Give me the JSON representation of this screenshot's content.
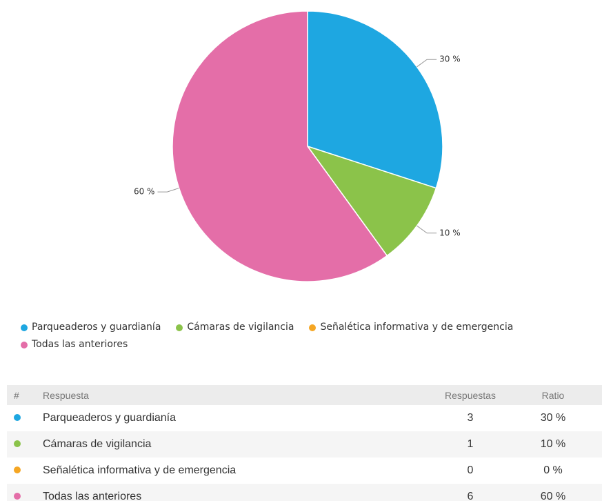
{
  "chart_data": {
    "type": "pie",
    "categories": [
      "Parqueaderos y guardianía",
      "Cámaras de vigilancia",
      "Señalética informativa y de emergencia",
      "Todas las anteriores"
    ],
    "values": [
      30,
      10,
      0,
      60
    ],
    "value_labels": [
      "30 %",
      "10 %",
      null,
      "60 %"
    ],
    "colors": [
      "#1ea7e1",
      "#8bc34a",
      "#f5a623",
      "#e46ea8"
    ],
    "legend": "bottom"
  },
  "table": {
    "header": [
      "#",
      "Respuesta",
      "Respuestas",
      "Ratio"
    ],
    "rows": [
      [
        "Parqueaderos y guardianía",
        3,
        "30 %"
      ],
      [
        "Cámaras de vigilancia",
        1,
        "10 %"
      ],
      [
        "Señalética informativa y de emergencia",
        0,
        "0 %"
      ],
      [
        "Todas las anteriores",
        6,
        "60 %"
      ]
    ]
  }
}
